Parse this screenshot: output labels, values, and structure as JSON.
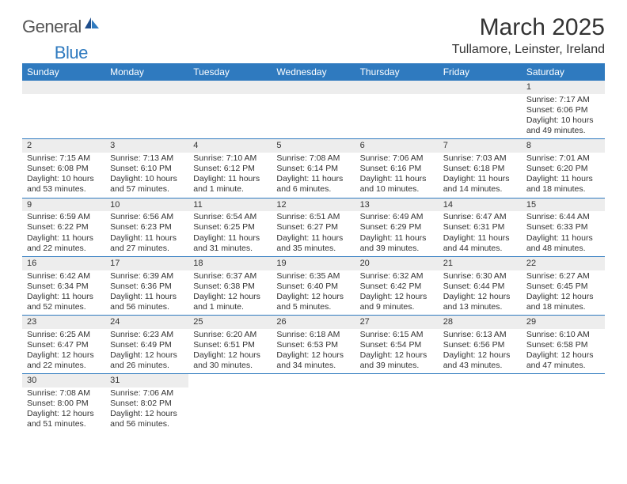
{
  "logo": {
    "general": "General",
    "blue": "Blue"
  },
  "title": "March 2025",
  "subtitle": "Tullamore, Leinster, Ireland",
  "weekdays": [
    "Sunday",
    "Monday",
    "Tuesday",
    "Wednesday",
    "Thursday",
    "Friday",
    "Saturday"
  ],
  "colors": {
    "header_bg": "#2f7abf",
    "header_text": "#ffffff",
    "daynum_bg": "#ededed",
    "border": "#2f7abf",
    "text": "#333333"
  },
  "weeks": [
    [
      null,
      null,
      null,
      null,
      null,
      null,
      {
        "d": "1",
        "sr": "Sunrise: 7:17 AM",
        "ss": "Sunset: 6:06 PM",
        "dl1": "Daylight: 10 hours",
        "dl2": "and 49 minutes."
      }
    ],
    [
      {
        "d": "2",
        "sr": "Sunrise: 7:15 AM",
        "ss": "Sunset: 6:08 PM",
        "dl1": "Daylight: 10 hours",
        "dl2": "and 53 minutes."
      },
      {
        "d": "3",
        "sr": "Sunrise: 7:13 AM",
        "ss": "Sunset: 6:10 PM",
        "dl1": "Daylight: 10 hours",
        "dl2": "and 57 minutes."
      },
      {
        "d": "4",
        "sr": "Sunrise: 7:10 AM",
        "ss": "Sunset: 6:12 PM",
        "dl1": "Daylight: 11 hours",
        "dl2": "and 1 minute."
      },
      {
        "d": "5",
        "sr": "Sunrise: 7:08 AM",
        "ss": "Sunset: 6:14 PM",
        "dl1": "Daylight: 11 hours",
        "dl2": "and 6 minutes."
      },
      {
        "d": "6",
        "sr": "Sunrise: 7:06 AM",
        "ss": "Sunset: 6:16 PM",
        "dl1": "Daylight: 11 hours",
        "dl2": "and 10 minutes."
      },
      {
        "d": "7",
        "sr": "Sunrise: 7:03 AM",
        "ss": "Sunset: 6:18 PM",
        "dl1": "Daylight: 11 hours",
        "dl2": "and 14 minutes."
      },
      {
        "d": "8",
        "sr": "Sunrise: 7:01 AM",
        "ss": "Sunset: 6:20 PM",
        "dl1": "Daylight: 11 hours",
        "dl2": "and 18 minutes."
      }
    ],
    [
      {
        "d": "9",
        "sr": "Sunrise: 6:59 AM",
        "ss": "Sunset: 6:22 PM",
        "dl1": "Daylight: 11 hours",
        "dl2": "and 22 minutes."
      },
      {
        "d": "10",
        "sr": "Sunrise: 6:56 AM",
        "ss": "Sunset: 6:23 PM",
        "dl1": "Daylight: 11 hours",
        "dl2": "and 27 minutes."
      },
      {
        "d": "11",
        "sr": "Sunrise: 6:54 AM",
        "ss": "Sunset: 6:25 PM",
        "dl1": "Daylight: 11 hours",
        "dl2": "and 31 minutes."
      },
      {
        "d": "12",
        "sr": "Sunrise: 6:51 AM",
        "ss": "Sunset: 6:27 PM",
        "dl1": "Daylight: 11 hours",
        "dl2": "and 35 minutes."
      },
      {
        "d": "13",
        "sr": "Sunrise: 6:49 AM",
        "ss": "Sunset: 6:29 PM",
        "dl1": "Daylight: 11 hours",
        "dl2": "and 39 minutes."
      },
      {
        "d": "14",
        "sr": "Sunrise: 6:47 AM",
        "ss": "Sunset: 6:31 PM",
        "dl1": "Daylight: 11 hours",
        "dl2": "and 44 minutes."
      },
      {
        "d": "15",
        "sr": "Sunrise: 6:44 AM",
        "ss": "Sunset: 6:33 PM",
        "dl1": "Daylight: 11 hours",
        "dl2": "and 48 minutes."
      }
    ],
    [
      {
        "d": "16",
        "sr": "Sunrise: 6:42 AM",
        "ss": "Sunset: 6:34 PM",
        "dl1": "Daylight: 11 hours",
        "dl2": "and 52 minutes."
      },
      {
        "d": "17",
        "sr": "Sunrise: 6:39 AM",
        "ss": "Sunset: 6:36 PM",
        "dl1": "Daylight: 11 hours",
        "dl2": "and 56 minutes."
      },
      {
        "d": "18",
        "sr": "Sunrise: 6:37 AM",
        "ss": "Sunset: 6:38 PM",
        "dl1": "Daylight: 12 hours",
        "dl2": "and 1 minute."
      },
      {
        "d": "19",
        "sr": "Sunrise: 6:35 AM",
        "ss": "Sunset: 6:40 PM",
        "dl1": "Daylight: 12 hours",
        "dl2": "and 5 minutes."
      },
      {
        "d": "20",
        "sr": "Sunrise: 6:32 AM",
        "ss": "Sunset: 6:42 PM",
        "dl1": "Daylight: 12 hours",
        "dl2": "and 9 minutes."
      },
      {
        "d": "21",
        "sr": "Sunrise: 6:30 AM",
        "ss": "Sunset: 6:44 PM",
        "dl1": "Daylight: 12 hours",
        "dl2": "and 13 minutes."
      },
      {
        "d": "22",
        "sr": "Sunrise: 6:27 AM",
        "ss": "Sunset: 6:45 PM",
        "dl1": "Daylight: 12 hours",
        "dl2": "and 18 minutes."
      }
    ],
    [
      {
        "d": "23",
        "sr": "Sunrise: 6:25 AM",
        "ss": "Sunset: 6:47 PM",
        "dl1": "Daylight: 12 hours",
        "dl2": "and 22 minutes."
      },
      {
        "d": "24",
        "sr": "Sunrise: 6:23 AM",
        "ss": "Sunset: 6:49 PM",
        "dl1": "Daylight: 12 hours",
        "dl2": "and 26 minutes."
      },
      {
        "d": "25",
        "sr": "Sunrise: 6:20 AM",
        "ss": "Sunset: 6:51 PM",
        "dl1": "Daylight: 12 hours",
        "dl2": "and 30 minutes."
      },
      {
        "d": "26",
        "sr": "Sunrise: 6:18 AM",
        "ss": "Sunset: 6:53 PM",
        "dl1": "Daylight: 12 hours",
        "dl2": "and 34 minutes."
      },
      {
        "d": "27",
        "sr": "Sunrise: 6:15 AM",
        "ss": "Sunset: 6:54 PM",
        "dl1": "Daylight: 12 hours",
        "dl2": "and 39 minutes."
      },
      {
        "d": "28",
        "sr": "Sunrise: 6:13 AM",
        "ss": "Sunset: 6:56 PM",
        "dl1": "Daylight: 12 hours",
        "dl2": "and 43 minutes."
      },
      {
        "d": "29",
        "sr": "Sunrise: 6:10 AM",
        "ss": "Sunset: 6:58 PM",
        "dl1": "Daylight: 12 hours",
        "dl2": "and 47 minutes."
      }
    ],
    [
      {
        "d": "30",
        "sr": "Sunrise: 7:08 AM",
        "ss": "Sunset: 8:00 PM",
        "dl1": "Daylight: 12 hours",
        "dl2": "and 51 minutes."
      },
      {
        "d": "31",
        "sr": "Sunrise: 7:06 AM",
        "ss": "Sunset: 8:02 PM",
        "dl1": "Daylight: 12 hours",
        "dl2": "and 56 minutes."
      },
      null,
      null,
      null,
      null,
      null
    ]
  ]
}
